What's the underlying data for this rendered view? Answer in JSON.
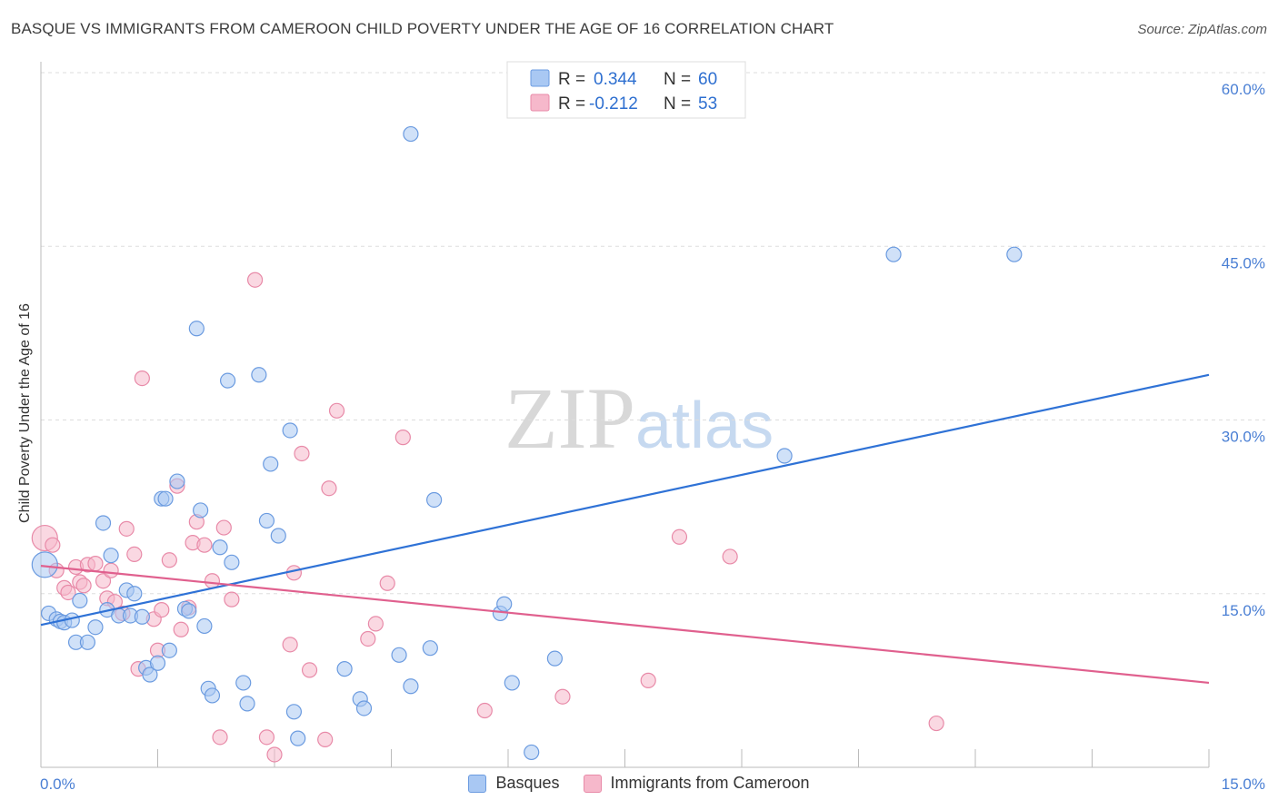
{
  "title": "BASQUE VS IMMIGRANTS FROM CAMEROON CHILD POVERTY UNDER THE AGE OF 16 CORRELATION CHART",
  "source": "Source: ZipAtlas.com",
  "watermark": {
    "zip": "ZIP",
    "atlas": "atlas"
  },
  "legend_box": {
    "rows": [
      {
        "r_label": "R =",
        "r_value": "0.344",
        "n_label": "N =",
        "n_value": "60"
      },
      {
        "r_label": "R =",
        "r_value": "-0.212",
        "n_label": "N =",
        "n_value": "53"
      }
    ]
  },
  "bottom_legend": {
    "series1": "Basques",
    "series2": "Immigrants from Cameroon"
  },
  "colors": {
    "blue_fill": "#a9c8f3",
    "blue_stroke": "#6b9be0",
    "blue_line": "#2f72d6",
    "pink_fill": "#f6b8cb",
    "pink_stroke": "#e88aa8",
    "pink_line": "#e0608e",
    "grid": "#dddddd",
    "axis_label": "#4a7fd4"
  },
  "chart_data": {
    "type": "scatter",
    "title": "BASQUE VS IMMIGRANTS FROM CAMEROON CHILD POVERTY UNDER THE AGE OF 16 CORRELATION CHART",
    "xlabel": "",
    "ylabel": "Child Poverty Under the Age of 16",
    "xlim": [
      0,
      15
    ],
    "ylim": [
      0,
      60
    ],
    "x_tick_labels": [
      "0.0%",
      "15.0%"
    ],
    "y_tick_values": [
      15,
      30,
      45,
      60
    ],
    "y_tick_labels": [
      "15.0%",
      "30.0%",
      "45.0%",
      "60.0%"
    ],
    "grid": true,
    "legend_placement": "top-center",
    "series": [
      {
        "name": "Basques",
        "r": 0.344,
        "n": 60,
        "trend": {
          "x": [
            0,
            15
          ],
          "y": [
            12.3,
            33.9
          ]
        },
        "points": [
          [
            0.1,
            13.3
          ],
          [
            0.2,
            12.8
          ],
          [
            0.25,
            12.6
          ],
          [
            0.3,
            12.5
          ],
          [
            0.4,
            12.7
          ],
          [
            0.45,
            10.8
          ],
          [
            0.5,
            14.4
          ],
          [
            0.6,
            10.8
          ],
          [
            0.7,
            12.1
          ],
          [
            0.8,
            21.1
          ],
          [
            0.85,
            13.6
          ],
          [
            0.9,
            18.3
          ],
          [
            1.0,
            13.1
          ],
          [
            1.1,
            15.3
          ],
          [
            1.15,
            13.1
          ],
          [
            1.2,
            15.0
          ],
          [
            1.3,
            13.0
          ],
          [
            1.35,
            8.6
          ],
          [
            1.4,
            8.0
          ],
          [
            1.5,
            9.0
          ],
          [
            1.55,
            23.2
          ],
          [
            1.6,
            23.2
          ],
          [
            1.65,
            10.1
          ],
          [
            1.75,
            24.7
          ],
          [
            1.85,
            13.7
          ],
          [
            1.9,
            13.5
          ],
          [
            2.0,
            37.9
          ],
          [
            2.05,
            22.2
          ],
          [
            2.1,
            12.2
          ],
          [
            2.15,
            6.8
          ],
          [
            2.2,
            6.2
          ],
          [
            2.3,
            19.0
          ],
          [
            2.4,
            33.4
          ],
          [
            2.45,
            17.7
          ],
          [
            2.6,
            7.3
          ],
          [
            2.65,
            5.5
          ],
          [
            2.8,
            33.9
          ],
          [
            2.9,
            21.3
          ],
          [
            2.95,
            26.2
          ],
          [
            3.05,
            20.0
          ],
          [
            3.2,
            29.1
          ],
          [
            3.25,
            4.8
          ],
          [
            3.3,
            2.5
          ],
          [
            3.9,
            8.5
          ],
          [
            4.1,
            5.9
          ],
          [
            4.15,
            5.1
          ],
          [
            4.6,
            9.7
          ],
          [
            4.75,
            7.0
          ],
          [
            4.75,
            54.7
          ],
          [
            5.0,
            10.3
          ],
          [
            5.05,
            23.1
          ],
          [
            5.9,
            13.3
          ],
          [
            5.95,
            14.1
          ],
          [
            6.05,
            7.3
          ],
          [
            6.3,
            1.3
          ],
          [
            6.6,
            9.4
          ],
          [
            9.55,
            26.9
          ],
          [
            10.95,
            44.3
          ],
          [
            12.5,
            44.3
          ],
          [
            0.05,
            17.5
          ]
        ]
      },
      {
        "name": "Immigrants from Cameroon",
        "r": -0.212,
        "n": 53,
        "trend": {
          "x": [
            0,
            15
          ],
          "y": [
            17.4,
            7.3
          ]
        },
        "points": [
          [
            0.05,
            19.8
          ],
          [
            0.15,
            19.2
          ],
          [
            0.2,
            17.0
          ],
          [
            0.3,
            15.5
          ],
          [
            0.35,
            15.1
          ],
          [
            0.45,
            17.3
          ],
          [
            0.5,
            16.0
          ],
          [
            0.55,
            15.7
          ],
          [
            0.6,
            17.5
          ],
          [
            0.7,
            17.6
          ],
          [
            0.8,
            16.1
          ],
          [
            0.85,
            14.6
          ],
          [
            0.9,
            17.0
          ],
          [
            0.95,
            14.3
          ],
          [
            1.05,
            13.3
          ],
          [
            1.1,
            20.6
          ],
          [
            1.2,
            18.4
          ],
          [
            1.25,
            8.5
          ],
          [
            1.3,
            33.6
          ],
          [
            1.45,
            12.8
          ],
          [
            1.5,
            10.1
          ],
          [
            1.55,
            13.6
          ],
          [
            1.65,
            17.9
          ],
          [
            1.75,
            24.3
          ],
          [
            1.8,
            11.9
          ],
          [
            1.9,
            13.8
          ],
          [
            1.95,
            19.4
          ],
          [
            2.0,
            21.2
          ],
          [
            2.1,
            19.2
          ],
          [
            2.2,
            16.1
          ],
          [
            2.3,
            2.6
          ],
          [
            2.35,
            20.7
          ],
          [
            2.45,
            14.5
          ],
          [
            2.75,
            42.1
          ],
          [
            2.9,
            2.6
          ],
          [
            3.0,
            1.1
          ],
          [
            3.2,
            10.6
          ],
          [
            3.25,
            16.8
          ],
          [
            3.35,
            27.1
          ],
          [
            3.45,
            8.4
          ],
          [
            3.65,
            2.4
          ],
          [
            3.7,
            24.1
          ],
          [
            3.8,
            30.8
          ],
          [
            4.2,
            11.1
          ],
          [
            4.3,
            12.4
          ],
          [
            4.45,
            15.9
          ],
          [
            4.65,
            28.5
          ],
          [
            5.7,
            4.9
          ],
          [
            6.7,
            6.1
          ],
          [
            7.8,
            7.5
          ],
          [
            8.2,
            19.9
          ],
          [
            8.85,
            18.2
          ],
          [
            11.5,
            3.8
          ]
        ]
      }
    ]
  }
}
